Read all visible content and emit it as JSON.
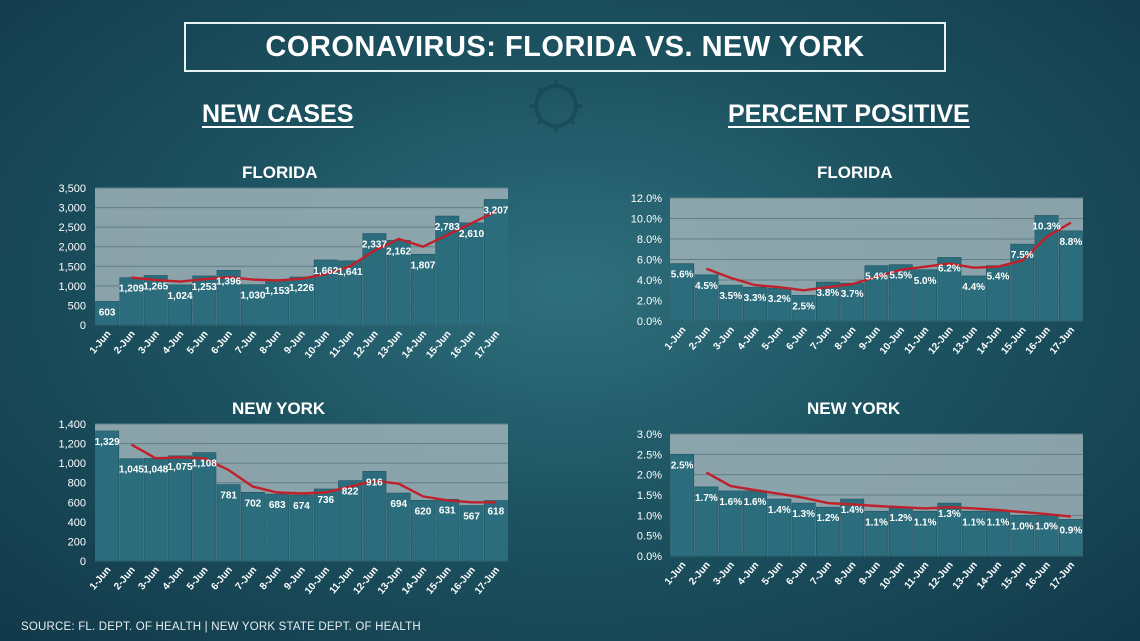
{
  "title": "CORONAVIRUS: FLORIDA VS. NEW YORK",
  "sections": {
    "new_cases": "NEW CASES",
    "percent_positive": "PERCENT POSITIVE"
  },
  "source": "SOURCE: FL. DEPT. OF HEALTH | NEW YORK STATE DEPT. OF HEALTH",
  "colors": {
    "bar": "#2b6d7c",
    "line": "#c0202a",
    "plot_bg": "#9fb2b7"
  },
  "chart_data": [
    {
      "id": "fl_cases",
      "type": "bar",
      "title": "FLORIDA",
      "categories": [
        "1-Jun",
        "2-Jun",
        "3-Jun",
        "4-Jun",
        "5-Jun",
        "6-Jun",
        "7-Jun",
        "8-Jun",
        "9-Jun",
        "10-Jun",
        "11-Jun",
        "12-Jun",
        "13-Jun",
        "14-Jun",
        "15-Jun",
        "16-Jun",
        "17-Jun"
      ],
      "values": [
        603,
        1209,
        1265,
        1024,
        1253,
        1396,
        1030,
        1153,
        1226,
        1662,
        1641,
        2337,
        2162,
        1807,
        2783,
        2610,
        3207
      ],
      "labels": [
        "603",
        "1,209",
        "1,265",
        "1,024",
        "1,253",
        "1,396",
        "1,030",
        "1,153",
        "1,226",
        "1,662",
        "1,641",
        "2,337",
        "2,162",
        "1,807",
        "2,783",
        "2,610",
        "3,207"
      ],
      "trend": [
        null,
        1210,
        1150,
        1110,
        1170,
        1220,
        1160,
        1140,
        1180,
        1300,
        1500,
        1900,
        2200,
        2000,
        2300,
        2600,
        2900
      ],
      "ylim": [
        0,
        3500
      ],
      "yticks": [
        "0",
        "500",
        "1,000",
        "1,500",
        "2,000",
        "2,500",
        "3,000",
        "3,500"
      ],
      "ytick_values": [
        0,
        500,
        1000,
        1500,
        2000,
        2500,
        3000,
        3500
      ]
    },
    {
      "id": "ny_cases",
      "type": "bar",
      "title": "NEW YORK",
      "categories": [
        "1-Jun",
        "2-Jun",
        "3-Jun",
        "4-Jun",
        "5-Jun",
        "6-Jun",
        "7-Jun",
        "8-Jun",
        "9-Jun",
        "10-Jun",
        "11-Jun",
        "12-Jun",
        "13-Jun",
        "14-Jun",
        "15-Jun",
        "16-Jun",
        "17-Jun"
      ],
      "values": [
        1329,
        1045,
        1048,
        1075,
        1108,
        781,
        702,
        683,
        674,
        736,
        822,
        916,
        694,
        620,
        631,
        567,
        618
      ],
      "labels": [
        "1,329",
        "1,045",
        "1,048",
        "1,075",
        "1,108",
        "781",
        "702",
        "683",
        "674",
        "736",
        "822",
        "916",
        "694",
        "620",
        "631",
        "567",
        "618"
      ],
      "trend": [
        null,
        1190,
        1050,
        1060,
        1050,
        930,
        760,
        700,
        690,
        700,
        760,
        820,
        790,
        660,
        620,
        600,
        600
      ],
      "ylim": [
        0,
        1400
      ],
      "yticks": [
        "0",
        "200",
        "400",
        "600",
        "800",
        "1,000",
        "1,200",
        "1,400"
      ],
      "ytick_values": [
        0,
        200,
        400,
        600,
        800,
        1000,
        1200,
        1400
      ]
    },
    {
      "id": "fl_pct",
      "type": "bar",
      "title": "FLORIDA",
      "categories": [
        "1-Jun",
        "2-Jun",
        "3-Jun",
        "4-Jun",
        "5-Jun",
        "6-Jun",
        "7-Jun",
        "8-Jun",
        "9-Jun",
        "10-Jun",
        "11-Jun",
        "12-Jun",
        "13-Jun",
        "14-Jun",
        "15-Jun",
        "16-Jun",
        "17-Jun"
      ],
      "values": [
        5.6,
        4.5,
        3.5,
        3.3,
        3.2,
        2.5,
        3.8,
        3.7,
        5.4,
        5.5,
        5.0,
        6.2,
        4.4,
        5.4,
        7.5,
        10.3,
        8.8
      ],
      "labels": [
        "5.6%",
        "4.5%",
        "3.5%",
        "3.3%",
        "3.2%",
        "2.5%",
        "3.8%",
        "3.7%",
        "5.4%",
        "5.5%",
        "5.0%",
        "6.2%",
        "4.4%",
        "5.4%",
        "7.5%",
        "10.3%",
        "8.8%"
      ],
      "trend": [
        null,
        5.1,
        4.2,
        3.5,
        3.3,
        3.0,
        3.3,
        3.6,
        4.3,
        5.0,
        5.3,
        5.6,
        5.2,
        5.3,
        5.9,
        8.2,
        9.6
      ],
      "ylim": [
        0,
        12
      ],
      "yticks": [
        "0.0%",
        "2.0%",
        "4.0%",
        "6.0%",
        "8.0%",
        "10.0%",
        "12.0%"
      ],
      "ytick_values": [
        0,
        2,
        4,
        6,
        8,
        10,
        12
      ]
    },
    {
      "id": "ny_pct",
      "type": "bar",
      "title": "NEW YORK",
      "categories": [
        "1-Jun",
        "2-Jun",
        "3-Jun",
        "4-Jun",
        "5-Jun",
        "6-Jun",
        "7-Jun",
        "8-Jun",
        "9-Jun",
        "10-Jun",
        "11-Jun",
        "12-Jun",
        "13-Jun",
        "14-Jun",
        "15-Jun",
        "16-Jun",
        "17-Jun"
      ],
      "values": [
        2.5,
        1.7,
        1.6,
        1.6,
        1.4,
        1.3,
        1.2,
        1.4,
        1.1,
        1.2,
        1.1,
        1.3,
        1.1,
        1.1,
        1.0,
        1.0,
        0.9
      ],
      "labels": [
        "2.5%",
        "1.7%",
        "1.6%",
        "1.6%",
        "1.4%",
        "1.3%",
        "1.2%",
        "1.4%",
        "1.1%",
        "1.2%",
        "1.1%",
        "1.3%",
        "1.1%",
        "1.1%",
        "1.0%",
        "1.0%",
        "0.9%"
      ],
      "trend": [
        null,
        2.05,
        1.72,
        1.62,
        1.53,
        1.43,
        1.3,
        1.27,
        1.23,
        1.2,
        1.17,
        1.2,
        1.17,
        1.13,
        1.08,
        1.03,
        0.97
      ],
      "ylim": [
        0,
        3
      ],
      "yticks": [
        "0.0%",
        "0.5%",
        "1.0%",
        "1.5%",
        "2.0%",
        "2.5%",
        "3.0%"
      ],
      "ytick_values": [
        0,
        0.5,
        1,
        1.5,
        2,
        2.5,
        3
      ]
    }
  ]
}
